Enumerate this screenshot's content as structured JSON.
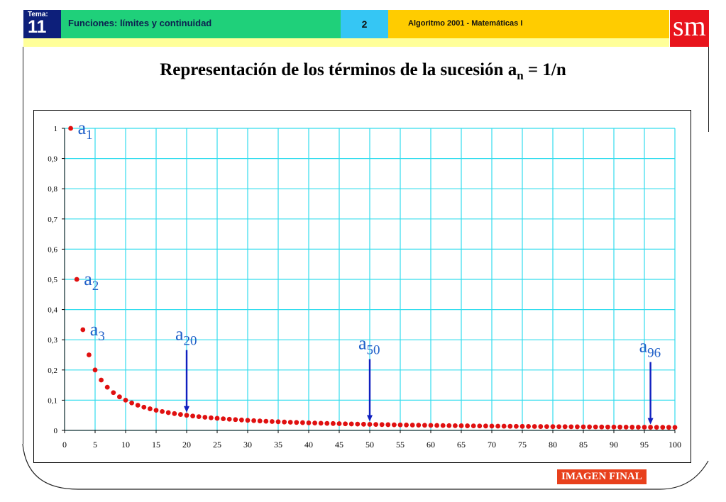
{
  "header": {
    "tema_label": "Tema:",
    "tema_number": "11",
    "topic": "Funciones: límites y continuidad",
    "page_number": "2",
    "course": "Algoritmo 2001 - Matemáticas I",
    "logo_text": "sm"
  },
  "slide": {
    "title_prefix": "Representación de los términos de la sucesión a",
    "title_subscript": "n",
    "title_suffix": " = 1/n"
  },
  "footer": {
    "badge": "IMAGEN FINAL"
  },
  "colors": {
    "grid": "#33ddee",
    "points": "#e01010",
    "annotation": "#1f5fc8",
    "arrow": "#1020c0"
  },
  "chart_data": {
    "type": "scatter",
    "formula": "1/n",
    "n_start": 1,
    "n_end": 100,
    "xlim": [
      0,
      100
    ],
    "ylim": [
      0,
      1
    ],
    "x_ticks": [
      0,
      5,
      10,
      15,
      20,
      25,
      30,
      35,
      40,
      45,
      50,
      55,
      60,
      65,
      70,
      75,
      80,
      85,
      90,
      95,
      100
    ],
    "y_ticks": [
      {
        "value": 0,
        "label": "0"
      },
      {
        "value": 0.1,
        "label": "0,1"
      },
      {
        "value": 0.2,
        "label": "0,2"
      },
      {
        "value": 0.3,
        "label": "0,3"
      },
      {
        "value": 0.4,
        "label": "0,4"
      },
      {
        "value": 0.5,
        "label": "0,5"
      },
      {
        "value": 0.6,
        "label": "0,6"
      },
      {
        "value": 0.7,
        "label": "0,7"
      },
      {
        "value": 0.8,
        "label": "0,8"
      },
      {
        "value": 0.9,
        "label": "0,9"
      },
      {
        "value": 1,
        "label": "1"
      }
    ],
    "grid": true,
    "point_labels": [
      {
        "n": 1,
        "base": "a",
        "sub": "1"
      },
      {
        "n": 2,
        "base": "a",
        "sub": "2"
      },
      {
        "n": 3,
        "base": "a",
        "sub": "3"
      }
    ],
    "arrow_labels": [
      {
        "n": 20,
        "base": "a",
        "sub": "20"
      },
      {
        "n": 50,
        "base": "a",
        "sub": "50"
      },
      {
        "n": 96,
        "base": "a",
        "sub": "96"
      }
    ]
  }
}
